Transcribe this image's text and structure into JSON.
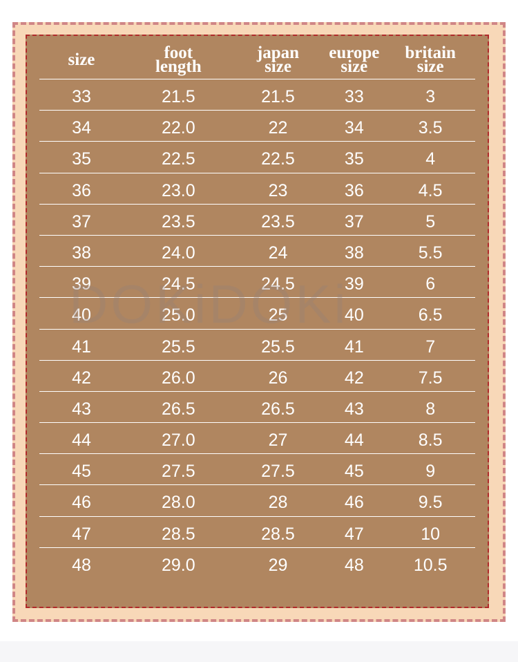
{
  "colors": {
    "panel": "#b08660",
    "frame": "#f8d8b8",
    "outer_dash": "#d08686",
    "inner_dash": "#b02a2a",
    "text": "#ffffff"
  },
  "watermark": "DOKiDOKi",
  "headers": [
    [
      "size"
    ],
    [
      "foot",
      "length"
    ],
    [
      "japan",
      "size"
    ],
    [
      "europe",
      "size"
    ],
    [
      "britain",
      "size"
    ]
  ],
  "rows": [
    [
      "33",
      "21.5",
      "21.5",
      "33",
      "3"
    ],
    [
      "34",
      "22.0",
      "22",
      "34",
      "3.5"
    ],
    [
      "35",
      "22.5",
      "22.5",
      "35",
      "4"
    ],
    [
      "36",
      "23.0",
      "23",
      "36",
      "4.5"
    ],
    [
      "37",
      "23.5",
      "23.5",
      "37",
      "5"
    ],
    [
      "38",
      "24.0",
      "24",
      "38",
      "5.5"
    ],
    [
      "39",
      "24.5",
      "24.5",
      "39",
      "6"
    ],
    [
      "40",
      "25.0",
      "25",
      "40",
      "6.5"
    ],
    [
      "41",
      "25.5",
      "25.5",
      "41",
      "7"
    ],
    [
      "42",
      "26.0",
      "26",
      "42",
      "7.5"
    ],
    [
      "43",
      "26.5",
      "26.5",
      "43",
      "8"
    ],
    [
      "44",
      "27.0",
      "27",
      "44",
      "8.5"
    ],
    [
      "45",
      "27.5",
      "27.5",
      "45",
      "9"
    ],
    [
      "46",
      "28.0",
      "28",
      "46",
      "9.5"
    ],
    [
      "47",
      "28.5",
      "28.5",
      "47",
      "10"
    ],
    [
      "48",
      "29.0",
      "29",
      "48",
      "10.5"
    ]
  ]
}
